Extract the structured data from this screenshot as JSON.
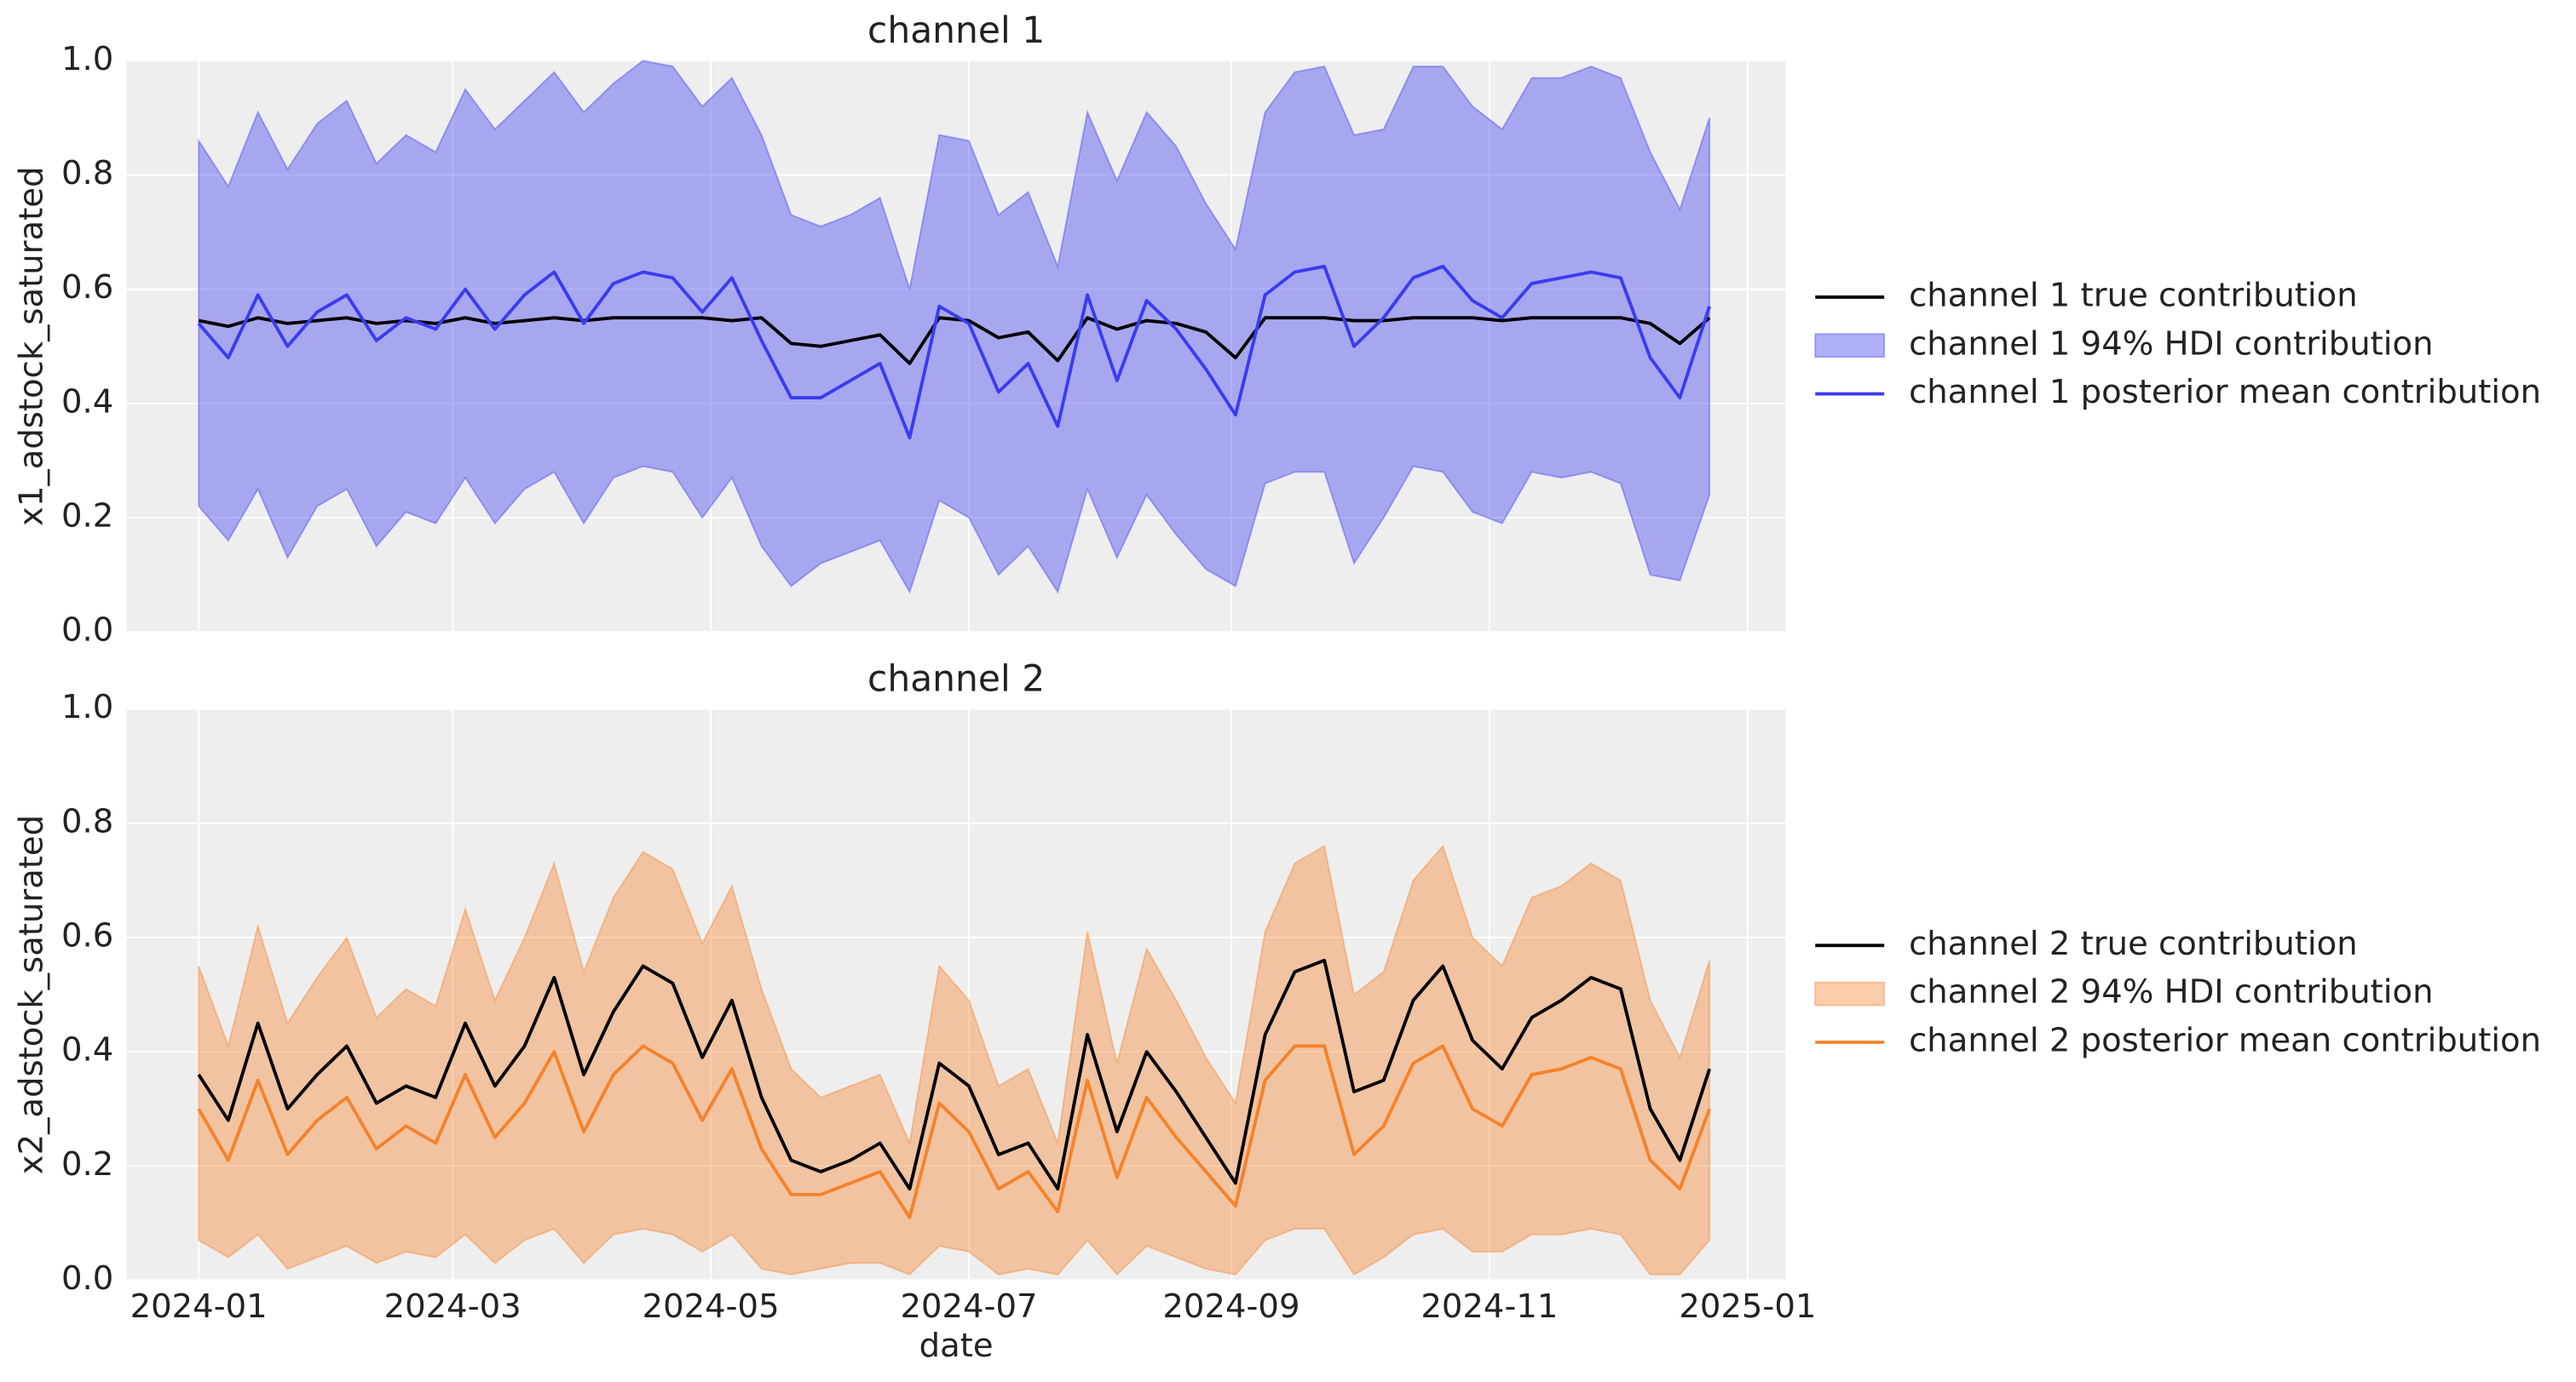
{
  "chart_data": [
    {
      "type": "line",
      "title": "channel 1",
      "y_label": "x1_adstock_saturated",
      "legend": "right",
      "x": [
        0,
        7,
        14,
        21,
        28,
        35,
        42,
        49,
        56,
        63,
        70,
        77,
        84,
        91,
        98,
        105,
        112,
        119,
        126,
        133,
        140,
        147,
        154,
        161,
        168,
        175,
        182,
        189,
        196,
        203,
        210,
        217,
        224,
        231,
        238,
        245,
        252,
        259,
        266,
        273,
        280,
        287,
        294,
        301,
        308,
        315,
        322,
        329,
        336,
        343,
        350,
        357
      ],
      "xlim": [
        -17,
        375
      ],
      "ylim": [
        0,
        1
      ],
      "yticks": [
        {
          "value": 0,
          "label": "0.0"
        },
        0.2,
        0.4,
        0.6,
        0.8,
        {
          "value": 1,
          "label": "1.0"
        }
      ],
      "grid": true,
      "series": [
        {
          "name": "channel 1 true contribution",
          "color": "#000000",
          "values": [
            0.545,
            0.535,
            0.55,
            0.54,
            0.545,
            0.55,
            0.54,
            0.545,
            0.54,
            0.55,
            0.54,
            0.545,
            0.55,
            0.545,
            0.55,
            0.55,
            0.55,
            0.55,
            0.545,
            0.55,
            0.505,
            0.5,
            0.51,
            0.52,
            0.47,
            0.55,
            0.545,
            0.515,
            0.525,
            0.475,
            0.55,
            0.53,
            0.545,
            0.54,
            0.525,
            0.48,
            0.55,
            0.55,
            0.55,
            0.545,
            0.545,
            0.55,
            0.55,
            0.55,
            0.545,
            0.55,
            0.55,
            0.55,
            0.55,
            0.54,
            0.505,
            0.55
          ]
        },
        {
          "name": "channel 1 94% HDI contribution",
          "color": "#3b3bf0",
          "alpha": 0.4,
          "upper": [
            0.86,
            0.78,
            0.91,
            0.81,
            0.89,
            0.93,
            0.82,
            0.87,
            0.84,
            0.95,
            0.88,
            0.93,
            0.98,
            0.91,
            0.96,
            1.0,
            0.99,
            0.92,
            0.97,
            0.87,
            0.73,
            0.71,
            0.73,
            0.76,
            0.6,
            0.87,
            0.86,
            0.73,
            0.77,
            0.64,
            0.91,
            0.79,
            0.91,
            0.85,
            0.75,
            0.67,
            0.91,
            0.98,
            0.99,
            0.87,
            0.88,
            0.99,
            0.99,
            0.92,
            0.88,
            0.97,
            0.97,
            0.99,
            0.97,
            0.84,
            0.74,
            0.9
          ],
          "lower": [
            0.22,
            0.16,
            0.25,
            0.13,
            0.22,
            0.25,
            0.15,
            0.21,
            0.19,
            0.27,
            0.19,
            0.25,
            0.28,
            0.19,
            0.27,
            0.29,
            0.28,
            0.2,
            0.27,
            0.15,
            0.08,
            0.12,
            0.14,
            0.16,
            0.07,
            0.23,
            0.2,
            0.1,
            0.15,
            0.07,
            0.25,
            0.13,
            0.24,
            0.17,
            0.11,
            0.08,
            0.26,
            0.28,
            0.28,
            0.12,
            0.2,
            0.29,
            0.28,
            0.21,
            0.19,
            0.28,
            0.27,
            0.28,
            0.26,
            0.1,
            0.09,
            0.24
          ]
        },
        {
          "name": "channel 1 posterior mean contribution",
          "color": "#3b3bf0",
          "values": [
            0.54,
            0.48,
            0.59,
            0.5,
            0.56,
            0.59,
            0.51,
            0.55,
            0.53,
            0.6,
            0.53,
            0.59,
            0.63,
            0.54,
            0.61,
            0.63,
            0.62,
            0.56,
            0.62,
            0.51,
            0.41,
            0.41,
            0.44,
            0.47,
            0.34,
            0.57,
            0.54,
            0.42,
            0.47,
            0.36,
            0.59,
            0.44,
            0.58,
            0.53,
            0.46,
            0.38,
            0.59,
            0.63,
            0.64,
            0.5,
            0.55,
            0.62,
            0.64,
            0.58,
            0.55,
            0.61,
            0.62,
            0.63,
            0.62,
            0.48,
            0.41,
            0.57
          ]
        }
      ]
    },
    {
      "type": "line",
      "title": "channel 2",
      "y_label": "x2_adstock_saturated",
      "x_label": "date",
      "legend": "right",
      "x": [
        0,
        7,
        14,
        21,
        28,
        35,
        42,
        49,
        56,
        63,
        70,
        77,
        84,
        91,
        98,
        105,
        112,
        119,
        126,
        133,
        140,
        147,
        154,
        161,
        168,
        175,
        182,
        189,
        196,
        203,
        210,
        217,
        224,
        231,
        238,
        245,
        252,
        259,
        266,
        273,
        280,
        287,
        294,
        301,
        308,
        315,
        322,
        329,
        336,
        343,
        350,
        357
      ],
      "xlim": [
        -17,
        375
      ],
      "ylim": [
        0,
        1
      ],
      "xticks": [
        {
          "value": 0,
          "label": "2024-01"
        },
        {
          "value": 60,
          "label": "2024-03"
        },
        {
          "value": 121,
          "label": "2024-05"
        },
        {
          "value": 182,
          "label": "2024-07"
        },
        {
          "value": 244,
          "label": "2024-09"
        },
        {
          "value": 305,
          "label": "2024-11"
        },
        {
          "value": 366,
          "label": "2025-01"
        }
      ],
      "yticks": [
        {
          "value": 0,
          "label": "0.0"
        },
        0.2,
        0.4,
        0.6,
        0.8,
        {
          "value": 1,
          "label": "1.0"
        }
      ],
      "grid": true,
      "series": [
        {
          "name": "channel 2 true contribution",
          "color": "#000000",
          "values": [
            0.36,
            0.28,
            0.45,
            0.3,
            0.36,
            0.41,
            0.31,
            0.34,
            0.32,
            0.45,
            0.34,
            0.41,
            0.53,
            0.36,
            0.47,
            0.55,
            0.52,
            0.39,
            0.49,
            0.32,
            0.21,
            0.19,
            0.21,
            0.24,
            0.16,
            0.38,
            0.34,
            0.22,
            0.24,
            0.16,
            0.43,
            0.26,
            0.4,
            0.33,
            0.25,
            0.17,
            0.43,
            0.54,
            0.56,
            0.33,
            0.35,
            0.49,
            0.55,
            0.42,
            0.37,
            0.46,
            0.49,
            0.53,
            0.51,
            0.3,
            0.21,
            0.37
          ]
        },
        {
          "name": "channel 2 94% HDI contribution",
          "color": "#f5822a",
          "alpha": 0.4,
          "upper": [
            0.55,
            0.41,
            0.62,
            0.45,
            0.53,
            0.6,
            0.46,
            0.51,
            0.48,
            0.65,
            0.49,
            0.6,
            0.73,
            0.54,
            0.67,
            0.75,
            0.72,
            0.59,
            0.69,
            0.51,
            0.37,
            0.32,
            0.34,
            0.36,
            0.24,
            0.55,
            0.49,
            0.34,
            0.37,
            0.24,
            0.61,
            0.38,
            0.58,
            0.49,
            0.39,
            0.31,
            0.61,
            0.73,
            0.76,
            0.5,
            0.54,
            0.7,
            0.76,
            0.6,
            0.55,
            0.67,
            0.69,
            0.73,
            0.7,
            0.49,
            0.39,
            0.56
          ],
          "lower": [
            0.07,
            0.04,
            0.08,
            0.02,
            0.04,
            0.06,
            0.03,
            0.05,
            0.04,
            0.08,
            0.03,
            0.07,
            0.09,
            0.03,
            0.08,
            0.09,
            0.08,
            0.05,
            0.08,
            0.02,
            0.01,
            0.02,
            0.03,
            0.03,
            0.01,
            0.06,
            0.05,
            0.01,
            0.02,
            0.01,
            0.07,
            0.01,
            0.06,
            0.04,
            0.02,
            0.01,
            0.07,
            0.09,
            0.09,
            0.01,
            0.04,
            0.08,
            0.09,
            0.05,
            0.05,
            0.08,
            0.08,
            0.09,
            0.08,
            0.01,
            0.01,
            0.07
          ]
        },
        {
          "name": "channel 2 posterior mean contribution",
          "color": "#f5822a",
          "values": [
            0.3,
            0.21,
            0.35,
            0.22,
            0.28,
            0.32,
            0.23,
            0.27,
            0.24,
            0.36,
            0.25,
            0.31,
            0.4,
            0.26,
            0.36,
            0.41,
            0.38,
            0.28,
            0.37,
            0.23,
            0.15,
            0.15,
            0.17,
            0.19,
            0.11,
            0.31,
            0.26,
            0.16,
            0.19,
            0.12,
            0.35,
            0.18,
            0.32,
            0.25,
            0.19,
            0.13,
            0.35,
            0.41,
            0.41,
            0.22,
            0.27,
            0.38,
            0.41,
            0.3,
            0.27,
            0.36,
            0.37,
            0.39,
            0.37,
            0.21,
            0.16,
            0.3
          ]
        }
      ]
    }
  ]
}
